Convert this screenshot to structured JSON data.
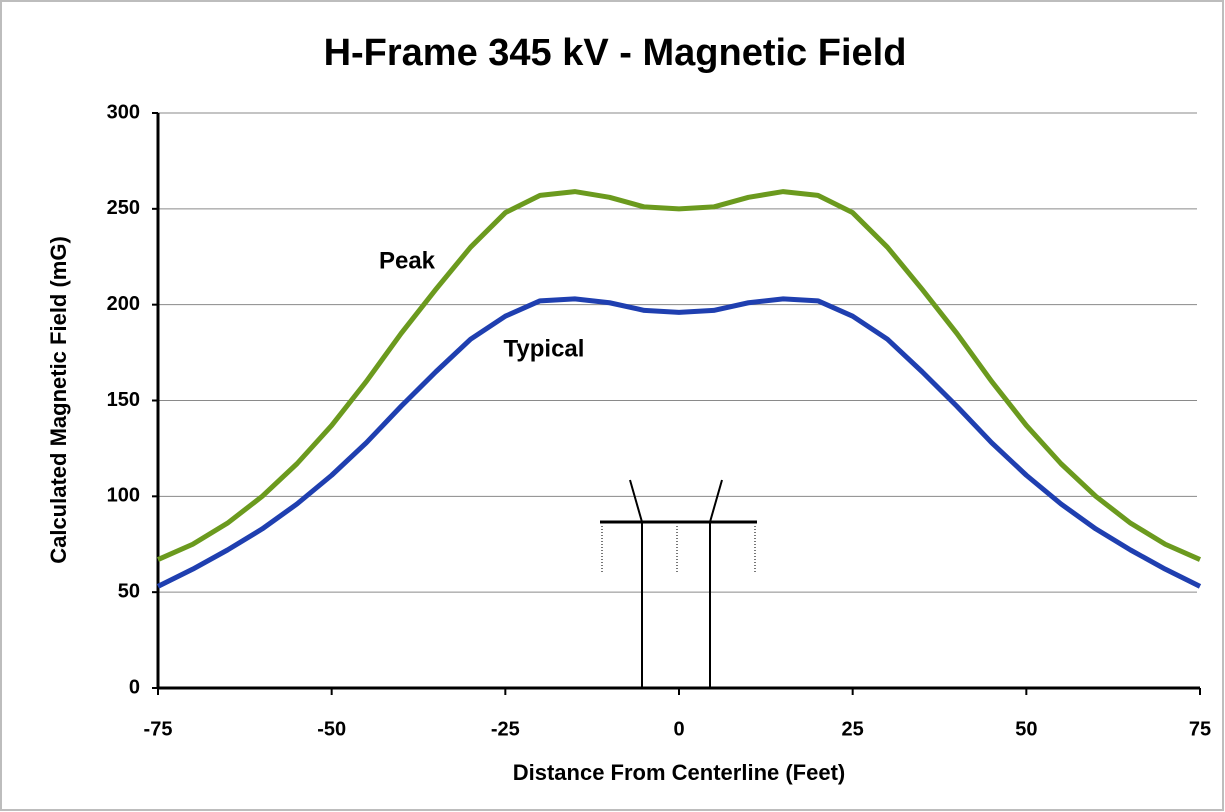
{
  "chart_data": {
    "type": "line",
    "title": "H-Frame 345 kV - Magnetic Field",
    "x_label": "Distance From Centerline (Feet)",
    "y_label": "Calculated Magnetic Field (mG)",
    "x": [
      -75,
      -70,
      -65,
      -60,
      -55,
      -50,
      -45,
      -40,
      -35,
      -30,
      -25,
      -20,
      -15,
      -10,
      -5,
      0,
      5,
      10,
      15,
      20,
      25,
      30,
      35,
      40,
      45,
      50,
      55,
      60,
      65,
      70,
      75
    ],
    "series": [
      {
        "name": "Peak",
        "color": "#6b9a1e",
        "values": [
          67,
          75,
          86,
          100,
          117,
          137,
          160,
          185,
          208,
          230,
          248,
          257,
          259,
          256,
          251,
          250,
          251,
          256,
          259,
          257,
          248,
          230,
          208,
          185,
          160,
          137,
          117,
          100,
          86,
          75,
          67
        ]
      },
      {
        "name": "Typical",
        "color": "#1f3fb0",
        "values": [
          53,
          62,
          72,
          83,
          96,
          111,
          128,
          147,
          165,
          182,
          194,
          202,
          203,
          201,
          197,
          196,
          197,
          201,
          203,
          202,
          194,
          182,
          165,
          147,
          128,
          111,
          96,
          83,
          72,
          62,
          53
        ]
      }
    ],
    "xlim": [
      -75,
      75
    ],
    "xticks": [
      -75,
      -50,
      -25,
      0,
      25,
      50,
      75
    ],
    "ylim": [
      0,
      300
    ],
    "yticks": [
      0,
      50,
      100,
      150,
      200,
      250,
      300
    ],
    "grid": true
  }
}
